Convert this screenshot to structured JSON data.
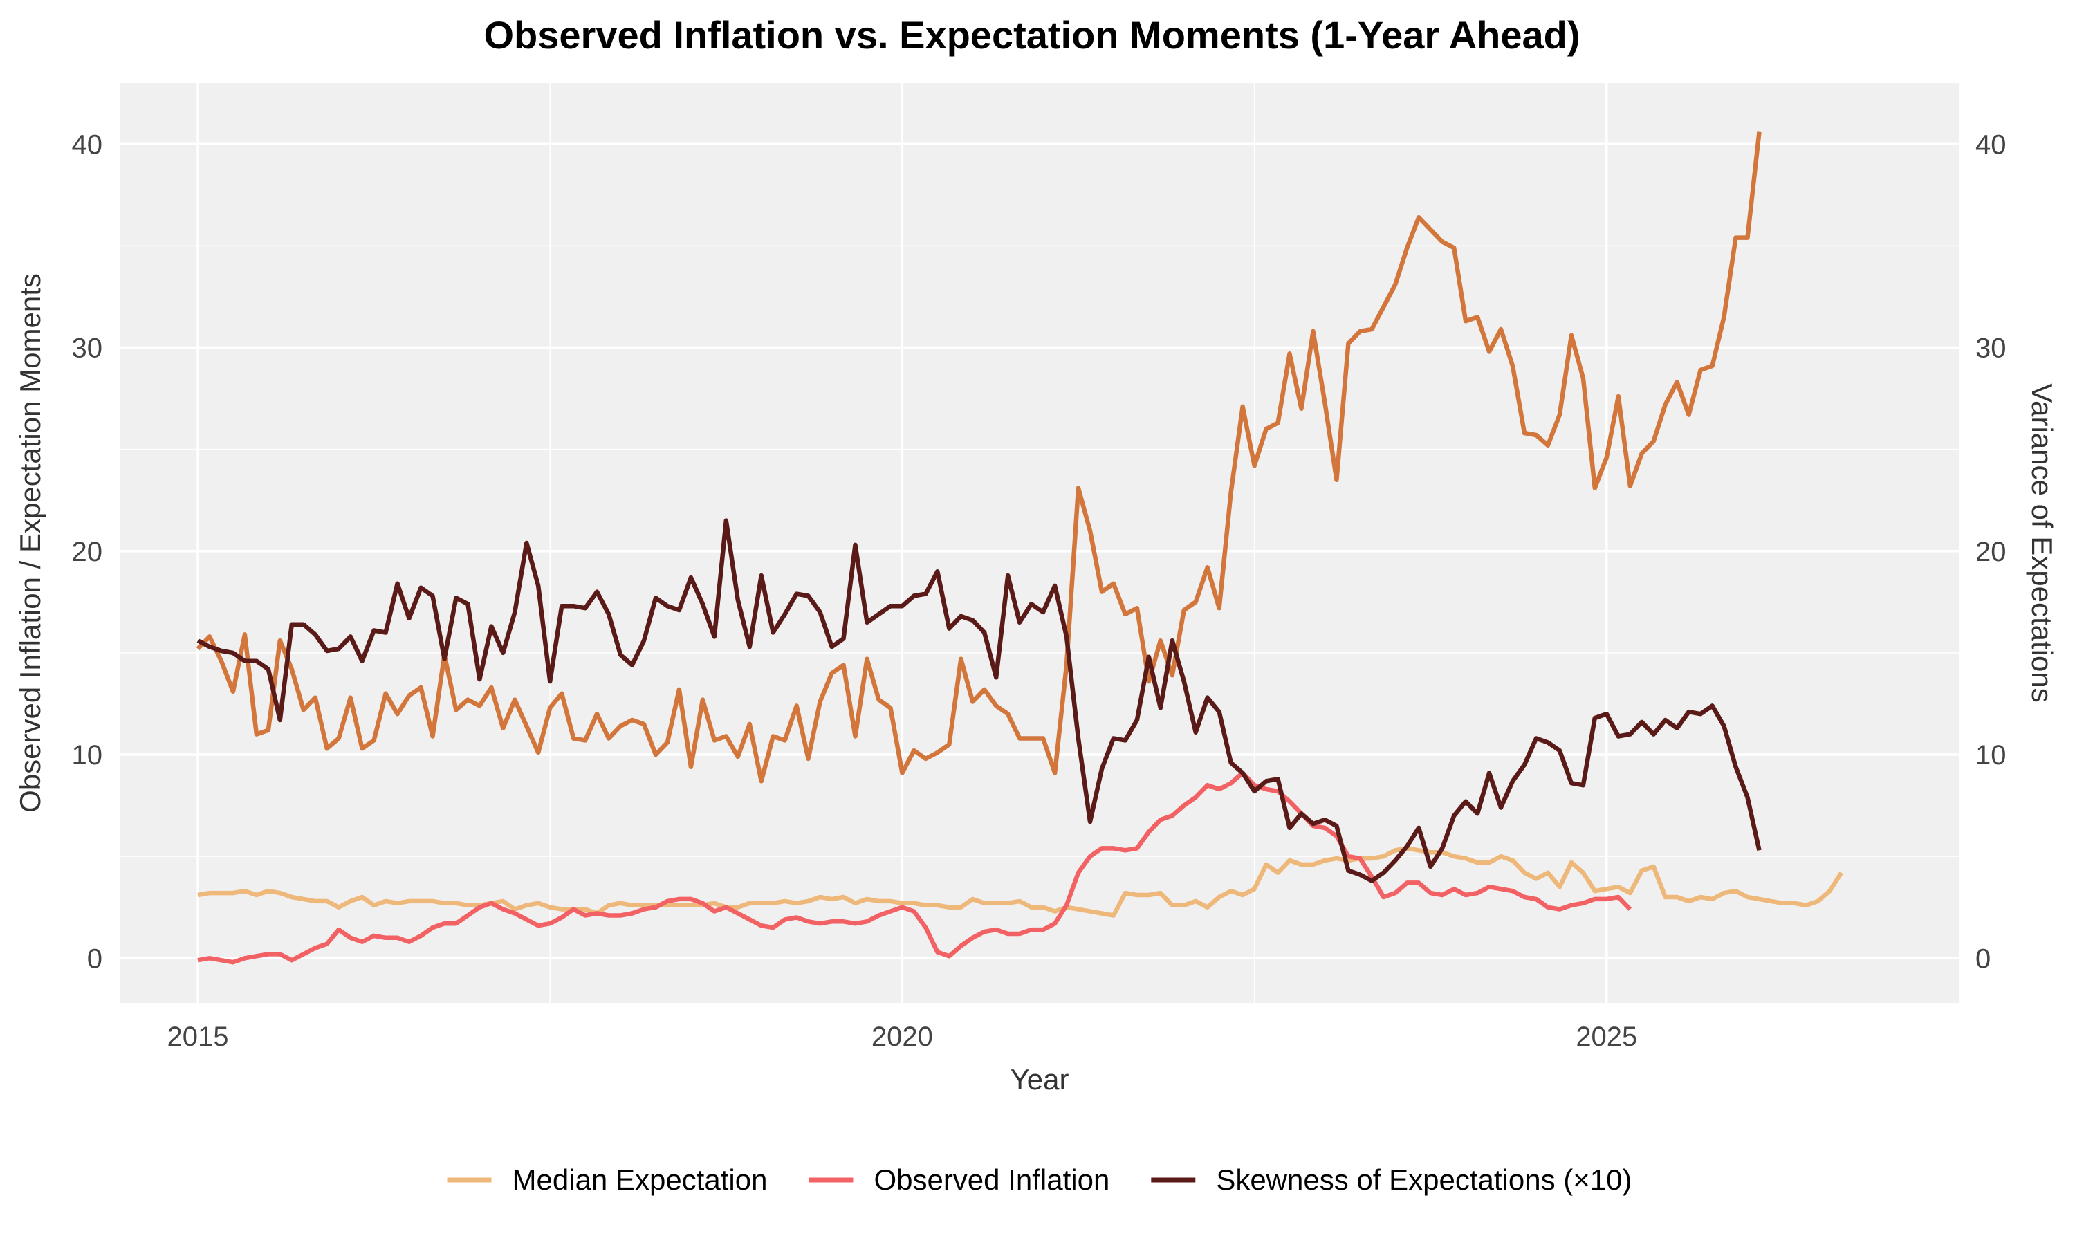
{
  "chart_data": {
    "type": "line",
    "title": "Observed Inflation vs. Expectation Moments (1-Year Ahead)",
    "xlabel": "Year",
    "ylabel": "Observed Inflation / Expectation Moments",
    "ylabel_right": "Variance of Expectations",
    "xlim": [
      2014.45,
      2027.5
    ],
    "ylim": [
      -2.2,
      43
    ],
    "x_ticks": [
      2015,
      2020,
      2025
    ],
    "y_ticks": [
      0,
      10,
      20,
      30,
      40
    ],
    "y_ticks_right": [
      0,
      10,
      20,
      30,
      40
    ],
    "grid": true,
    "legend_position": "bottom",
    "x_start": 2015.0,
    "x_step": 0.0833333,
    "series": [
      {
        "name": "Median Expectation",
        "color": "#EDB87A",
        "values": [
          3.1,
          3.2,
          3.2,
          3.2,
          3.3,
          3.1,
          3.3,
          3.2,
          3.0,
          2.9,
          2.8,
          2.8,
          2.5,
          2.8,
          3.0,
          2.6,
          2.8,
          2.7,
          2.8,
          2.8,
          2.8,
          2.7,
          2.7,
          2.6,
          2.6,
          2.7,
          2.8,
          2.4,
          2.6,
          2.7,
          2.5,
          2.4,
          2.4,
          2.4,
          2.2,
          2.6,
          2.7,
          2.6,
          2.6,
          2.6,
          2.6,
          2.6,
          2.6,
          2.6,
          2.7,
          2.5,
          2.5,
          2.7,
          2.7,
          2.7,
          2.8,
          2.7,
          2.8,
          3.0,
          2.9,
          3.0,
          2.7,
          2.9,
          2.8,
          2.8,
          2.7,
          2.7,
          2.6,
          2.6,
          2.5,
          2.5,
          2.9,
          2.7,
          2.7,
          2.7,
          2.8,
          2.5,
          2.5,
          2.3,
          2.5,
          2.4,
          2.3,
          2.2,
          2.1,
          3.2,
          3.1,
          3.1,
          3.2,
          2.6,
          2.6,
          2.8,
          2.5,
          3.0,
          3.3,
          3.1,
          3.4,
          4.6,
          4.2,
          4.8,
          4.6,
          4.6,
          4.8,
          4.9,
          4.8,
          4.9,
          4.9,
          5.0,
          5.3,
          5.4,
          5.3,
          5.2,
          5.2,
          5.0,
          4.9,
          4.7,
          4.7,
          5.0,
          4.8,
          4.2,
          3.9,
          4.2,
          3.5,
          4.7,
          4.2,
          3.3,
          3.4,
          3.5,
          3.2,
          4.3,
          4.5,
          3.0,
          3.0,
          2.8,
          3.0,
          2.9,
          3.2,
          3.3,
          3.0,
          2.9,
          2.8,
          2.7,
          2.7,
          2.6,
          2.8,
          3.3,
          4.2
        ]
      },
      {
        "name": "Observed Inflation",
        "color": "#F26163",
        "values": [
          -0.1,
          0.0,
          -0.1,
          -0.2,
          0.0,
          0.1,
          0.2,
          0.2,
          -0.1,
          0.2,
          0.5,
          0.7,
          1.4,
          1.0,
          0.8,
          1.1,
          1.0,
          1.0,
          0.8,
          1.1,
          1.5,
          1.7,
          1.7,
          2.1,
          2.5,
          2.7,
          2.4,
          2.2,
          1.9,
          1.6,
          1.7,
          2.0,
          2.4,
          2.1,
          2.2,
          2.1,
          2.1,
          2.2,
          2.4,
          2.5,
          2.8,
          2.9,
          2.9,
          2.7,
          2.3,
          2.5,
          2.2,
          1.9,
          1.6,
          1.5,
          1.9,
          2.0,
          1.8,
          1.7,
          1.8,
          1.8,
          1.7,
          1.8,
          2.1,
          2.3,
          2.5,
          2.3,
          1.5,
          0.3,
          0.1,
          0.6,
          1.0,
          1.3,
          1.4,
          1.2,
          1.2,
          1.4,
          1.4,
          1.7,
          2.6,
          4.2,
          5.0,
          5.4,
          5.4,
          5.3,
          5.4,
          6.2,
          6.8,
          7.0,
          7.5,
          7.9,
          8.5,
          8.3,
          8.6,
          9.1,
          8.5,
          8.3,
          8.2,
          7.7,
          7.1,
          6.5,
          6.4,
          6.0,
          5.0,
          4.9,
          4.0,
          3.0,
          3.2,
          3.7,
          3.7,
          3.2,
          3.1,
          3.4,
          3.1,
          3.2,
          3.5,
          3.4,
          3.3,
          3.0,
          2.9,
          2.5,
          2.4,
          2.6,
          2.7,
          2.9,
          2.9,
          3.0,
          2.4
        ]
      },
      {
        "name": "Skewness of Expectations (×10)",
        "color": "#5A1A17",
        "values": [
          15.6,
          15.3,
          15.1,
          15.0,
          14.6,
          14.6,
          14.2,
          11.7,
          16.4,
          16.4,
          15.9,
          15.1,
          15.2,
          15.8,
          14.6,
          16.1,
          16.0,
          18.4,
          16.7,
          18.2,
          17.8,
          14.7,
          17.7,
          17.4,
          13.7,
          16.3,
          15.0,
          17.0,
          20.4,
          18.3,
          13.6,
          17.3,
          17.3,
          17.2,
          18.0,
          16.9,
          14.9,
          14.4,
          15.6,
          17.7,
          17.3,
          17.1,
          18.7,
          17.4,
          15.8,
          21.5,
          17.6,
          15.3,
          18.8,
          16.0,
          16.9,
          17.9,
          17.8,
          17.0,
          15.3,
          15.7,
          20.3,
          16.5,
          16.9,
          17.3,
          17.3,
          17.8,
          17.9,
          19.0,
          16.2,
          16.8,
          16.6,
          16.0,
          13.8,
          18.8,
          16.5,
          17.4,
          17.0,
          18.3,
          15.8,
          10.8,
          6.7,
          9.3,
          10.8,
          10.7,
          11.7,
          14.8,
          12.3,
          15.6,
          13.6,
          11.1,
          12.8,
          12.1,
          9.6,
          9.1,
          8.2,
          8.7,
          8.8,
          6.4,
          7.1,
          6.6,
          6.8,
          6.5,
          4.3,
          4.1,
          3.8,
          4.2,
          4.8,
          5.5,
          6.4,
          4.5,
          5.4,
          7.0,
          7.7,
          7.1,
          9.1,
          7.4,
          8.7,
          9.5,
          10.8,
          10.6,
          10.2,
          8.6,
          8.5,
          11.8,
          12.0,
          10.9,
          11.0,
          11.6,
          11.0,
          11.7,
          11.3,
          12.1,
          12.0,
          12.4,
          11.4,
          9.4,
          7.9,
          5.3
        ]
      },
      {
        "name": "",
        "axis": "right",
        "color": "#D2763C",
        "values": [
          15.2,
          15.8,
          14.6,
          13.1,
          15.9,
          11.0,
          11.2,
          15.6,
          14.2,
          12.2,
          12.8,
          10.3,
          10.8,
          12.8,
          10.3,
          10.7,
          13.0,
          12.0,
          12.9,
          13.3,
          10.9,
          14.9,
          12.2,
          12.7,
          12.4,
          13.3,
          11.3,
          12.7,
          11.4,
          10.1,
          12.3,
          13.0,
          10.8,
          10.7,
          12.0,
          10.8,
          11.4,
          11.7,
          11.5,
          10.0,
          10.6,
          13.2,
          9.4,
          12.7,
          10.7,
          10.9,
          9.9,
          11.5,
          8.7,
          10.9,
          10.7,
          12.4,
          9.8,
          12.6,
          14.0,
          14.4,
          10.9,
          14.7,
          12.7,
          12.3,
          9.1,
          10.2,
          9.8,
          10.1,
          10.5,
          14.7,
          12.6,
          13.2,
          12.4,
          12.0,
          10.8,
          10.8,
          10.8,
          9.1,
          14.4,
          23.1,
          21.0,
          18.0,
          18.4,
          16.9,
          17.2,
          13.6,
          15.6,
          13.9,
          17.1,
          17.5,
          19.2,
          17.2,
          22.9,
          27.1,
          24.2,
          26.0,
          26.3,
          29.7,
          27.0,
          30.8,
          27.3,
          23.5,
          30.2,
          30.8,
          30.9,
          32.0,
          33.1,
          34.9,
          36.4,
          35.8,
          35.2,
          34.9,
          31.3,
          31.5,
          29.8,
          30.9,
          29.1,
          25.8,
          25.7,
          25.2,
          26.7,
          30.6,
          28.5,
          23.1,
          24.6,
          27.6,
          23.2,
          24.8,
          25.4,
          27.2,
          28.3,
          26.7,
          28.9,
          29.1,
          31.5,
          35.4,
          35.4,
          40.6
        ]
      }
    ]
  }
}
